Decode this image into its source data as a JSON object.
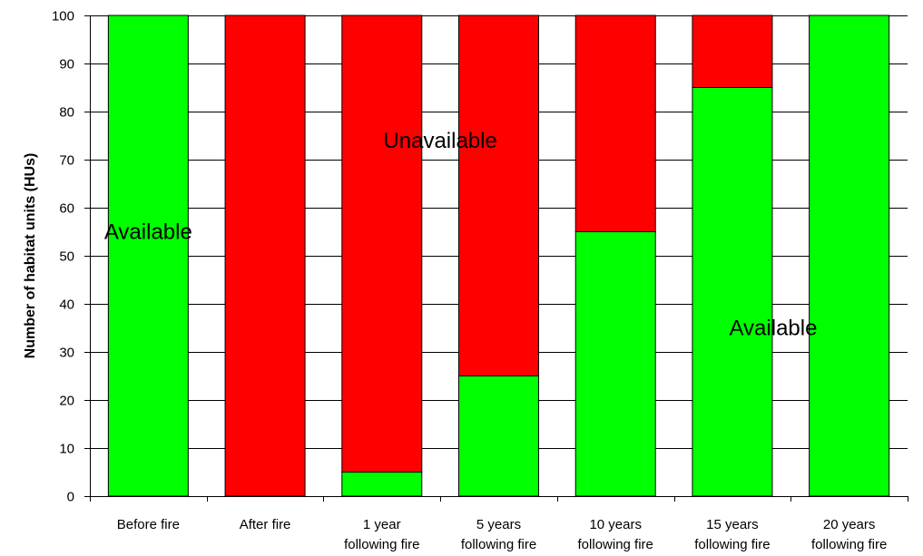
{
  "chart_data": {
    "type": "bar",
    "stacked": true,
    "categories": [
      [
        "Before fire"
      ],
      [
        "After fire"
      ],
      [
        "1 year",
        "following fire"
      ],
      [
        "5 years",
        "following fire"
      ],
      [
        "10 years",
        "following fire"
      ],
      [
        "15 years",
        "following fire"
      ],
      [
        "20 years",
        "following fire"
      ]
    ],
    "series": [
      {
        "name": "Available",
        "color": "#00ff00",
        "values": [
          100,
          0,
          5,
          25,
          55,
          85,
          100
        ]
      },
      {
        "name": "Unavailable",
        "color": "#ff0000",
        "values": [
          0,
          100,
          95,
          75,
          45,
          15,
          0
        ]
      }
    ],
    "xlabel": "",
    "ylabel": "Number of habitat units (HUs)",
    "ylim": [
      0,
      100
    ],
    "yticks": [
      0,
      10,
      20,
      30,
      40,
      50,
      60,
      70,
      80,
      90,
      100
    ],
    "grid": true,
    "annotations": [
      {
        "text": "Available",
        "category_index": 0,
        "y": 55
      },
      {
        "text": "Unavailable",
        "category_index": 2.5,
        "y": 74
      },
      {
        "text": "Available",
        "category_index": 5.35,
        "y": 35
      }
    ]
  }
}
